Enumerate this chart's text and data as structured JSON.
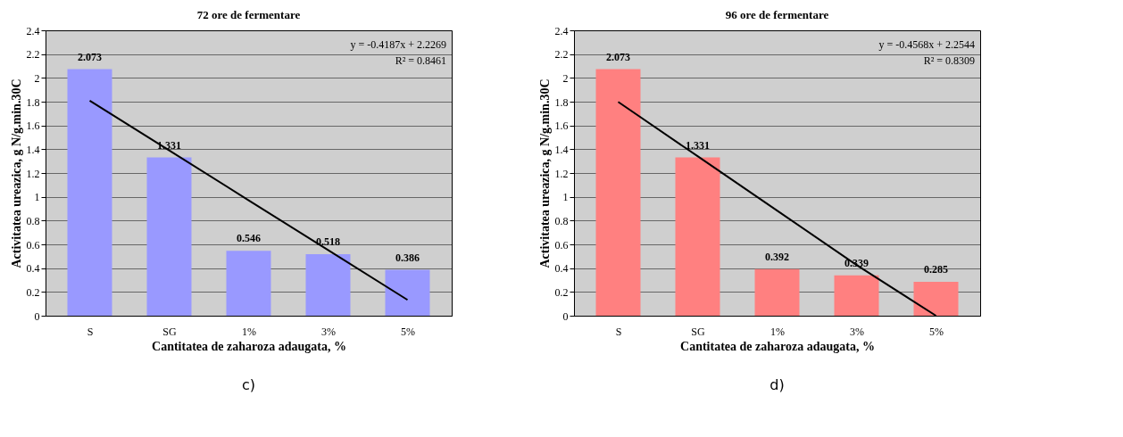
{
  "chart_data": [
    {
      "type": "bar",
      "title": "72 ore de fermentare",
      "xlabel": "Cantitatea de zaharoza adaugata, %",
      "ylabel": "Activitatea ureazica, g N/g.min.30C",
      "categories": [
        "S",
        "SG",
        "1%",
        "3%",
        "5%"
      ],
      "series": [
        {
          "type": "bar",
          "color": "#9999ff",
          "values": [
            2.073,
            1.331,
            0.546,
            0.518,
            0.386
          ],
          "value_labels": [
            "2.073",
            "1.331",
            "0.546",
            "0.518",
            "0.386"
          ]
        },
        {
          "type": "line",
          "color": "#000000",
          "values": [
            1.808,
            1.39,
            0.971,
            0.552,
            0.133
          ]
        }
      ],
      "ylim": [
        0,
        2.4
      ],
      "yticks": [
        0,
        0.2,
        0.4,
        0.6,
        0.8,
        1,
        1.2,
        1.4,
        1.6,
        1.8,
        2,
        2.2,
        2.4
      ],
      "grid": "y",
      "annotations": [
        "y = -0.4187x + 2.2269",
        "R² = 0.8461",
        "c)"
      ]
    },
    {
      "type": "bar",
      "title": "96 ore de fermentare",
      "xlabel": "Cantitatea de zaharoza adaugata, %",
      "ylabel": "Activitatea ureazica, g N/g.min.30C",
      "categories": [
        "S",
        "SG",
        "1%",
        "3%",
        "5%"
      ],
      "series": [
        {
          "type": "bar",
          "color": "#ff8080",
          "values": [
            2.073,
            1.331,
            0.392,
            0.339,
            0.285
          ],
          "value_labels": [
            "2.073",
            "1.331",
            "0.392",
            "0.339",
            "0.285"
          ]
        },
        {
          "type": "line",
          "color": "#000000",
          "values": [
            1.798,
            1.341,
            0.884,
            0.427,
            0
          ]
        }
      ],
      "ylim": [
        0,
        2.4
      ],
      "yticks": [
        0,
        0.2,
        0.4,
        0.6,
        0.8,
        1,
        1.2,
        1.4,
        1.6,
        1.8,
        2,
        2.2,
        2.4
      ],
      "grid": "y",
      "annotations": [
        "y = -0.4568x + 2.2544",
        "R² = 0.8309",
        "d)"
      ]
    }
  ]
}
